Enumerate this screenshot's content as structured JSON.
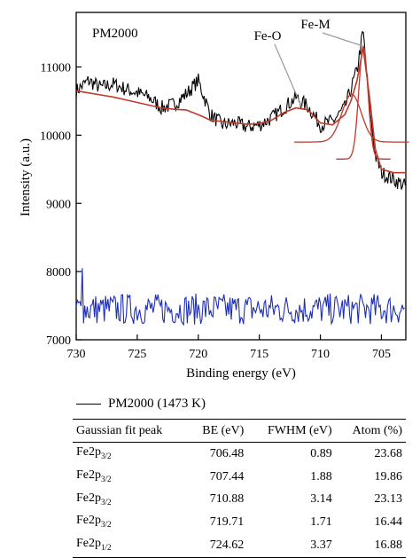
{
  "chart_data": {
    "type": "line",
    "panel_label": "PM2000",
    "xlabel": "Binding energy (eV)",
    "ylabel": "Intensity (a.u.)",
    "xlim": [
      730,
      703
    ],
    "ylim": [
      7000,
      11800
    ],
    "x_reversed": true,
    "x_ticks": [
      730,
      725,
      720,
      715,
      710,
      705
    ],
    "y_ticks": [
      7000,
      8000,
      9000,
      10000,
      11000
    ],
    "annotations": [
      {
        "text": "Fe-O",
        "target_x": 711.5,
        "target_y": 10400
      },
      {
        "text": "Fe-M",
        "target_x": 706.4,
        "target_y": 11300
      }
    ],
    "series": [
      {
        "role": "raw",
        "color": "#000000",
        "x": [
          730,
          729,
          728,
          727,
          726,
          725,
          724,
          723,
          722,
          721,
          720,
          719,
          718,
          717,
          716,
          715,
          714,
          713,
          712,
          711,
          710,
          709,
          708,
          707,
          706.5,
          706,
          705.5,
          705,
          704,
          703
        ],
        "y": [
          10650,
          10800,
          10700,
          10750,
          10680,
          10620,
          10550,
          10400,
          10450,
          10600,
          10800,
          10300,
          10150,
          10180,
          10120,
          10150,
          10250,
          10400,
          10550,
          10420,
          10150,
          10200,
          10400,
          10950,
          11520,
          10450,
          9700,
          9450,
          9350,
          9250
        ]
      },
      {
        "role": "fit",
        "color": "#c0392b",
        "x": [
          730,
          729,
          728,
          727,
          726,
          725,
          724,
          723,
          722,
          721,
          720,
          719,
          718,
          717,
          716,
          715,
          714,
          713,
          712,
          711,
          710,
          709,
          708,
          707.5,
          707,
          706.5,
          706,
          705.5,
          705,
          704,
          703
        ],
        "y": [
          10650,
          10620,
          10590,
          10560,
          10520,
          10480,
          10440,
          10400,
          10380,
          10370,
          10300,
          10220,
          10200,
          10180,
          10160,
          10170,
          10220,
          10330,
          10400,
          10370,
          10180,
          10150,
          10300,
          10500,
          10800,
          11280,
          10600,
          9800,
          9500,
          9450,
          9450
        ]
      },
      {
        "role": "difference",
        "color": "#1f2fb5",
        "mean": 7450,
        "amplitude": 230,
        "spike_x": 729.5,
        "spike_y": 8050
      }
    ]
  },
  "table": {
    "legend_label": "PM2000 (1473 K)",
    "headers": [
      "Gaussian fit peak",
      "BE (eV)",
      "FWHM (eV)",
      "Atom (%)"
    ],
    "rows": [
      {
        "peak_base": "Fe2p",
        "peak_sub": "3/2",
        "be": "706.48",
        "fwhm": "0.89",
        "atom": "23.68"
      },
      {
        "peak_base": "Fe2p",
        "peak_sub": "3/2",
        "be": "707.44",
        "fwhm": "1.88",
        "atom": "19.86"
      },
      {
        "peak_base": "Fe2p",
        "peak_sub": "3/2",
        "be": "710.88",
        "fwhm": "3.14",
        "atom": "23.13"
      },
      {
        "peak_base": "Fe2p",
        "peak_sub": "3/2",
        "be": "719.71",
        "fwhm": "1.71",
        "atom": "16.44"
      },
      {
        "peak_base": "Fe2p",
        "peak_sub": "1/2",
        "be": "724.62",
        "fwhm": "3.37",
        "atom": "16.88"
      }
    ]
  }
}
